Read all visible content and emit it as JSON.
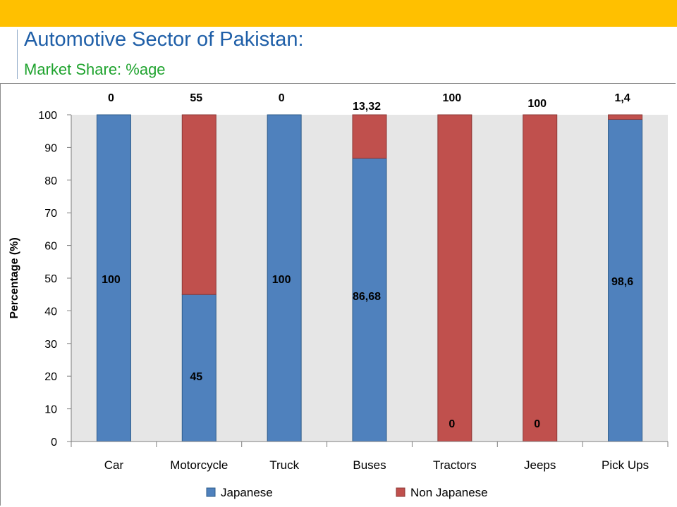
{
  "header": {
    "title": "Automotive Sector of Pakistan:",
    "subtitle": "Market Share: %age"
  },
  "colors": {
    "band": "#FFC000",
    "japanese": "#4F81BD",
    "non_japanese": "#C0504D",
    "plot_bg": "#E6E6E6"
  },
  "chart_data": {
    "type": "bar",
    "stacked": true,
    "categories": [
      "Car",
      "Motorcycle",
      "Truck",
      "Buses",
      "Tractors",
      "Jeeps",
      "Pick Ups"
    ],
    "series": [
      {
        "name": "Japanese",
        "values": [
          100,
          45,
          100,
          86.68,
          0,
          0,
          98.6
        ],
        "labels": [
          "100",
          "45",
          "100",
          "86,68",
          "0",
          "0",
          "98,6"
        ]
      },
      {
        "name": "Non Japanese",
        "values": [
          0,
          55,
          0,
          13.32,
          100,
          100,
          1.4
        ],
        "labels": [
          "0",
          "55",
          "0",
          "13,32",
          "100",
          "100",
          "1,4"
        ]
      }
    ],
    "ylabel": "Percentage (%)",
    "xlabel": "",
    "ylim": [
      0,
      100
    ],
    "yticks": [
      0,
      10,
      20,
      30,
      40,
      50,
      60,
      70,
      80,
      90,
      100
    ],
    "grid": false,
    "legend": "bottom"
  }
}
